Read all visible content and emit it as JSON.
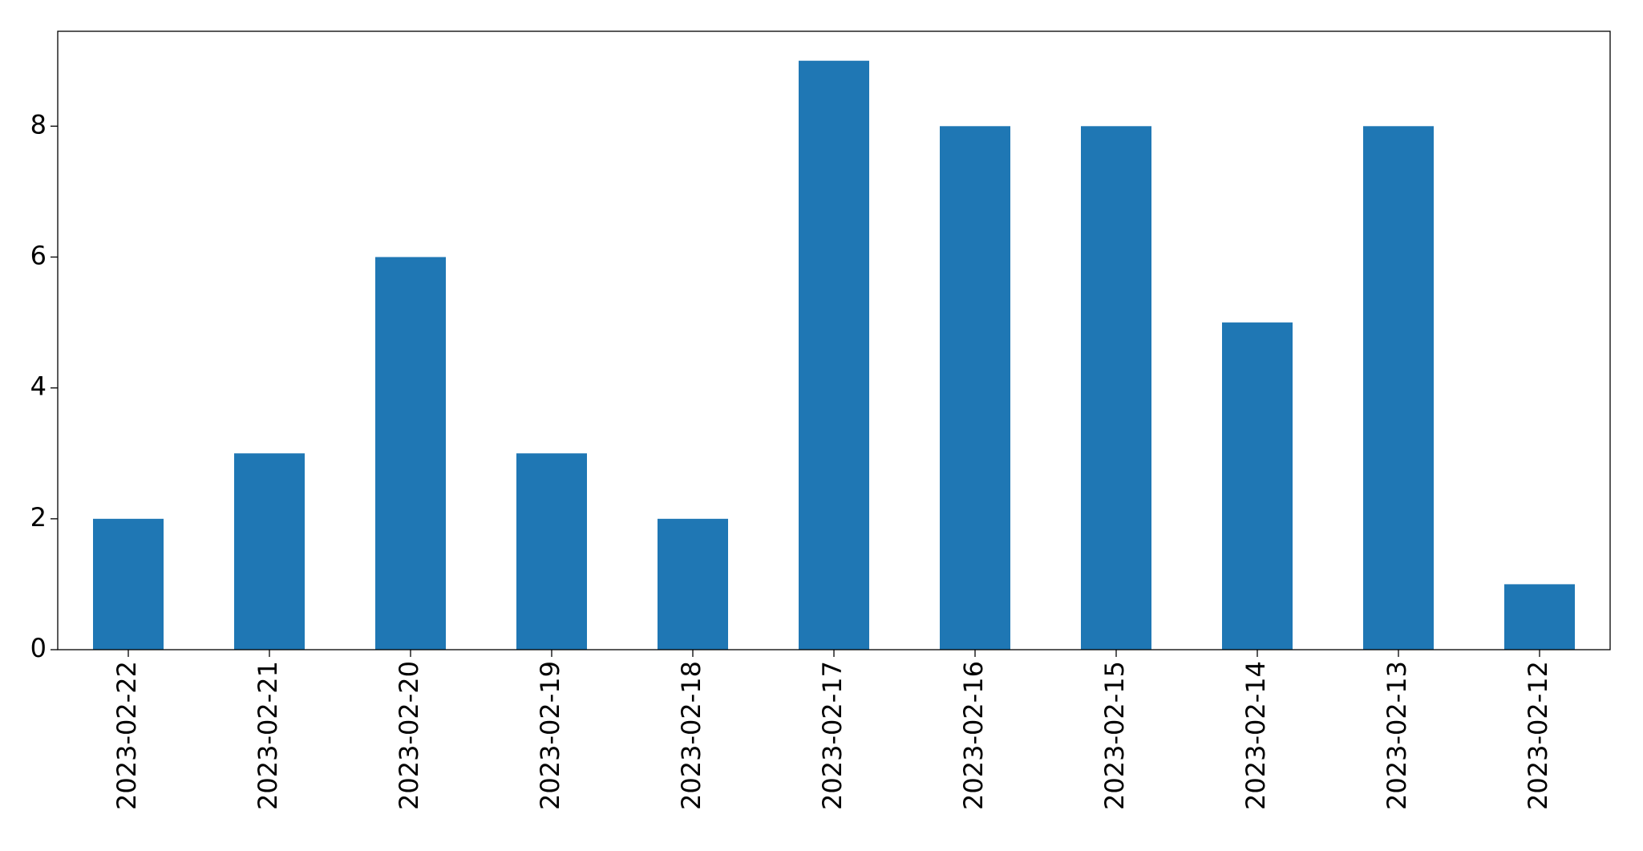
{
  "chart_data": {
    "type": "bar",
    "categories": [
      "2023-02-22",
      "2023-02-21",
      "2023-02-20",
      "2023-02-19",
      "2023-02-18",
      "2023-02-17",
      "2023-02-16",
      "2023-02-15",
      "2023-02-14",
      "2023-02-13",
      "2023-02-12"
    ],
    "values": [
      2,
      3,
      6,
      3,
      2,
      9,
      8,
      8,
      5,
      8,
      1
    ],
    "color": "#1f77b4",
    "ylim": [
      0,
      9.45
    ],
    "yticks": [
      0,
      2,
      4,
      6,
      8
    ],
    "grid": false
  }
}
